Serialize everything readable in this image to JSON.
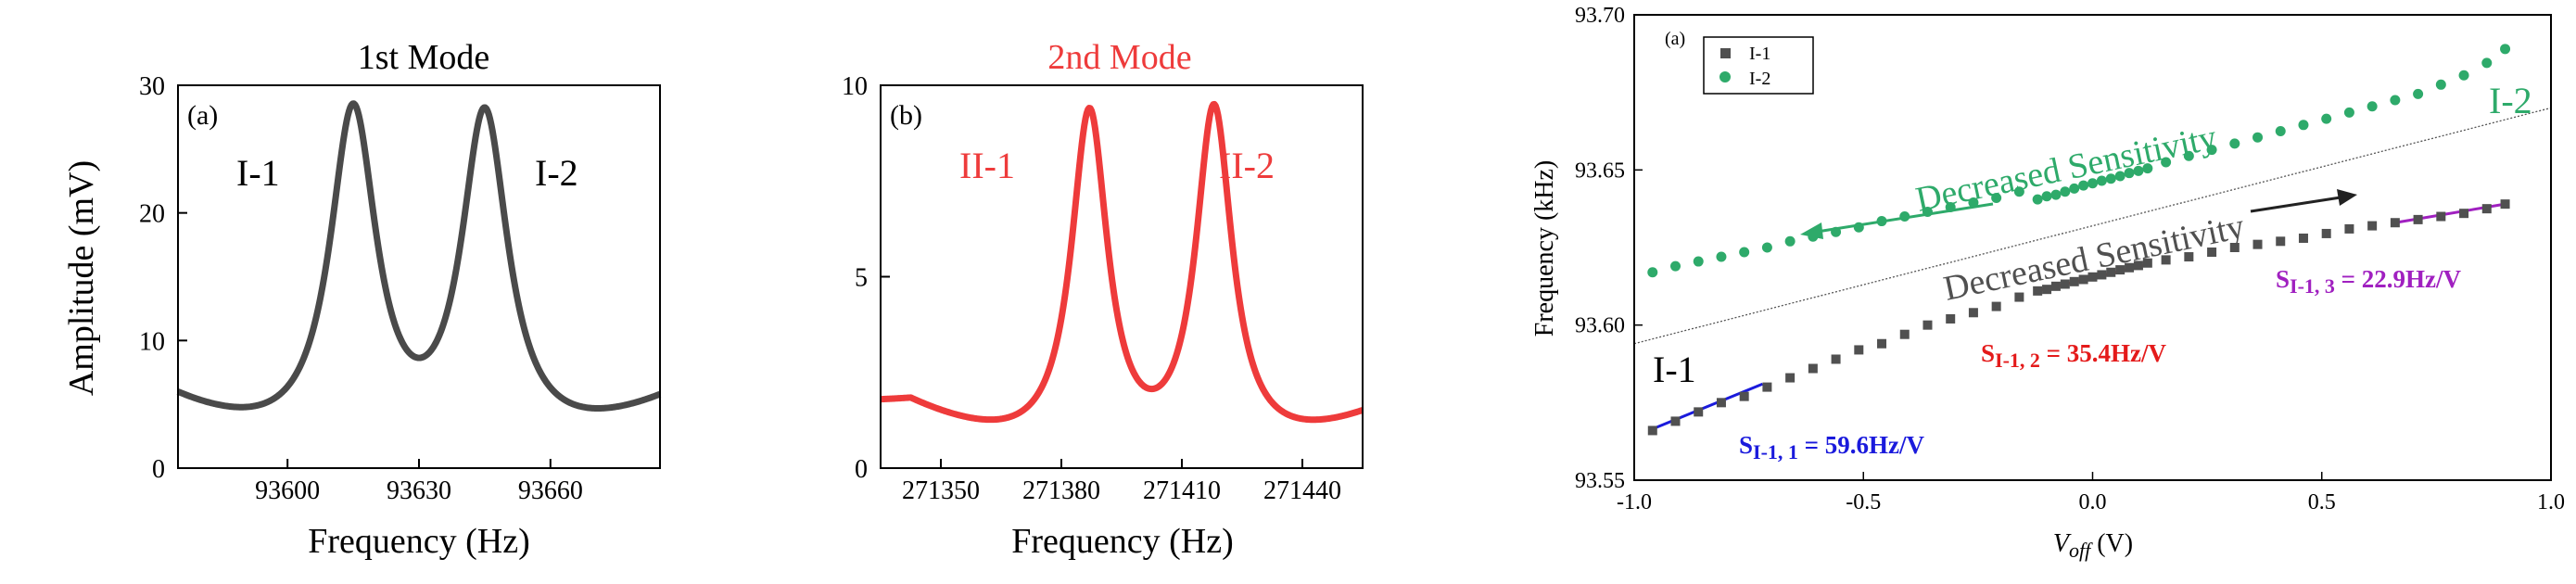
{
  "chart_data": [
    {
      "panel": "(a)",
      "type": "line",
      "title": "1st Mode",
      "xlabel": "Frequency (Hz)",
      "ylabel": "Amplitude (mV)",
      "xlim": [
        93575,
        93685
      ],
      "ylim": [
        0,
        30
      ],
      "xticks": [
        93600,
        93630,
        93660
      ],
      "yticks": [
        0,
        10,
        20,
        30
      ],
      "grid": false,
      "color": "#4a4a4a",
      "peaks": [
        {
          "label": "I-1",
          "x": 93615,
          "y": 28.2
        },
        {
          "label": "I-2",
          "x": 93645,
          "y": 27.9
        }
      ],
      "valley": {
        "x": 93630,
        "y": 9.3
      },
      "edges": {
        "left_y": 6.0,
        "right_y": 5.8
      }
    },
    {
      "panel": "(b)",
      "type": "line",
      "title": "2nd Mode",
      "xlabel": "Frequency (Hz)",
      "ylabel": "",
      "xlim": [
        271335,
        271455
      ],
      "ylim": [
        0,
        10
      ],
      "xticks": [
        271350,
        271380,
        271410,
        271440
      ],
      "yticks": [
        0,
        5,
        10
      ],
      "grid": false,
      "color": "#ee3b3b",
      "title_color": "#ee3b3b",
      "peaks": [
        {
          "label": "II-1",
          "x": 271387,
          "y": 9.3
        },
        {
          "label": "II-2",
          "x": 271418,
          "y": 9.4
        }
      ],
      "valley": {
        "x": 271402,
        "y": 2.1
      },
      "edges": {
        "left_y": 1.8,
        "right_y": 1.9
      }
    },
    {
      "panel": "(a)",
      "type": "scatter",
      "title": "",
      "xlabel_main": "V",
      "xlabel_sub": "off",
      "xlabel_unit": " (V)",
      "ylabel": "Frequency (kHz)",
      "xlim": [
        -1.0,
        1.0
      ],
      "ylim": [
        93.55,
        93.7
      ],
      "xticks": [
        -1.0,
        -0.5,
        0.0,
        0.5,
        1.0
      ],
      "xtick_labels": [
        "-1.0",
        "-0.5",
        "0.0",
        "0.5",
        "1.0"
      ],
      "yticks": [
        93.55,
        93.6,
        93.65,
        93.7
      ],
      "ytick_labels": [
        "93.55",
        "93.60",
        "93.65",
        "93.70"
      ],
      "grid": false,
      "legend_position": "top-left",
      "series": [
        {
          "name": "I-1",
          "marker": "square",
          "color": "#505050",
          "x": [
            -0.96,
            -0.91,
            -0.86,
            -0.81,
            -0.76,
            -0.71,
            -0.66,
            -0.61,
            -0.56,
            -0.51,
            -0.46,
            -0.41,
            -0.36,
            -0.31,
            -0.26,
            -0.21,
            -0.16,
            -0.12,
            -0.1,
            -0.08,
            -0.06,
            -0.04,
            -0.02,
            0.0,
            0.02,
            0.04,
            0.06,
            0.08,
            0.1,
            0.12,
            0.16,
            0.21,
            0.26,
            0.31,
            0.36,
            0.41,
            0.46,
            0.51,
            0.56,
            0.61,
            0.66,
            0.71,
            0.76,
            0.81,
            0.86,
            0.9
          ],
          "y": [
            93.566,
            93.569,
            93.572,
            93.575,
            93.577,
            93.58,
            93.583,
            93.586,
            93.589,
            93.592,
            93.594,
            93.597,
            93.6,
            93.602,
            93.604,
            93.606,
            93.609,
            93.611,
            93.6115,
            93.6125,
            93.6132,
            93.614,
            93.6147,
            93.6155,
            93.6162,
            93.617,
            93.6178,
            93.6185,
            93.6192,
            93.62,
            93.621,
            93.622,
            93.6235,
            93.625,
            93.626,
            93.627,
            93.628,
            93.6295,
            93.631,
            93.632,
            93.633,
            93.634,
            93.635,
            93.636,
            93.6375,
            93.639
          ]
        },
        {
          "name": "I-2",
          "marker": "circle",
          "color": "#2eaa6a",
          "x": [
            -0.96,
            -0.91,
            -0.86,
            -0.81,
            -0.76,
            -0.71,
            -0.66,
            -0.61,
            -0.56,
            -0.51,
            -0.46,
            -0.41,
            -0.36,
            -0.31,
            -0.26,
            -0.21,
            -0.16,
            -0.12,
            -0.1,
            -0.08,
            -0.06,
            -0.04,
            -0.02,
            0.0,
            0.02,
            0.04,
            0.06,
            0.08,
            0.1,
            0.12,
            0.16,
            0.21,
            0.26,
            0.31,
            0.36,
            0.41,
            0.46,
            0.51,
            0.56,
            0.61,
            0.66,
            0.71,
            0.76,
            0.81,
            0.86,
            0.9
          ],
          "y": [
            93.617,
            93.619,
            93.6205,
            93.622,
            93.6235,
            93.625,
            93.627,
            93.6285,
            93.63,
            93.6315,
            93.6335,
            93.635,
            93.6365,
            93.638,
            93.6395,
            93.641,
            93.643,
            93.6405,
            93.6415,
            93.642,
            93.643,
            93.644,
            93.645,
            93.6457,
            93.6465,
            93.6472,
            93.648,
            93.649,
            93.6497,
            93.6505,
            93.6525,
            93.6545,
            93.6565,
            93.6585,
            93.6605,
            93.6625,
            93.6645,
            93.6665,
            93.6685,
            93.6705,
            93.6725,
            93.6745,
            93.6775,
            93.6805,
            93.6845,
            93.689
          ]
        }
      ],
      "fit_lines": [
        {
          "label_main": "S",
          "label_sub": "I-1, 1",
          "label_value": " = 59.6Hz/V",
          "color": "#1a1adc",
          "x": [
            -0.96,
            -0.72
          ],
          "y": [
            93.5665,
            93.581
          ]
        },
        {
          "label_main": "S",
          "label_sub": "I-1, 2",
          "label_value": " = 35.4Hz/V",
          "color": "#e41a1a",
          "x": [
            -0.12,
            0.12
          ],
          "y": [
            93.611,
            93.6195
          ]
        },
        {
          "label_main": "S",
          "label_sub": "I-1, 3",
          "label_value": " = 22.9Hz/V",
          "color": "#a020c0",
          "x": [
            0.66,
            0.9
          ],
          "y": [
            93.633,
            93.639
          ]
        }
      ],
      "separator_line": {
        "x": [
          -1.0,
          1.0
        ],
        "y": [
          93.594,
          93.67
        ]
      },
      "annotations": [
        {
          "text": "Decreased Sensitivity",
          "color": "#2eaa6a"
        },
        {
          "text": "Decreased Sensitivity",
          "color": "#505050"
        },
        {
          "text": "I-2",
          "color": "#2eaa6a"
        },
        {
          "text": "I-1",
          "color": "#000000"
        }
      ]
    }
  ]
}
